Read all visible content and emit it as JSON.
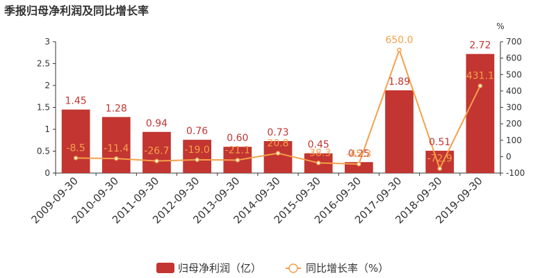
{
  "chart_data": {
    "type": "bar",
    "title": "季报归母净利润及同比增长率",
    "categories": [
      "2009-09-30",
      "2010-09-30",
      "2011-09-30",
      "2012-09-30",
      "2013-09-30",
      "2014-09-30",
      "2015-09-30",
      "2016-09-30",
      "2017-09-30",
      "2018-09-30",
      "2019-09-30"
    ],
    "series": [
      {
        "name": "归母净利润（亿）",
        "type": "bar",
        "axis": "left",
        "color": "#c23531",
        "values": [
          1.45,
          1.28,
          0.94,
          0.76,
          0.6,
          0.73,
          0.45,
          0.25,
          1.89,
          0.51,
          2.72
        ],
        "labels": [
          "1.45",
          "1.28",
          "0.94",
          "0.76",
          "0.60",
          "0.73",
          "0.45",
          "0.25",
          "1.89",
          "0.51",
          "2.72"
        ]
      },
      {
        "name": "同比增长率（%）",
        "type": "line",
        "axis": "right",
        "color": "#f5a04a",
        "values": [
          -8.5,
          -11.4,
          -26.7,
          -19.0,
          -21.1,
          20.8,
          -38.3,
          -45.3,
          650.0,
          -72.9,
          431.1
        ],
        "labels": [
          "-8.5",
          "-11.4",
          "-26.7",
          "-19.0",
          "-21.1",
          "20.8",
          "-38.3",
          "-45.3",
          "650.0",
          "-72.9",
          "431.1"
        ]
      }
    ],
    "y_left": {
      "min": 0,
      "max": 3,
      "ticks": [
        "0",
        "0.5",
        "1",
        "1.5",
        "2",
        "2.5",
        "3"
      ]
    },
    "y_right": {
      "min": -100,
      "max": 700,
      "unit": "%",
      "ticks": [
        "-100",
        "0",
        "100",
        "200",
        "300",
        "400",
        "500",
        "600",
        "700"
      ]
    },
    "grid": false,
    "legend_position": "bottom"
  }
}
